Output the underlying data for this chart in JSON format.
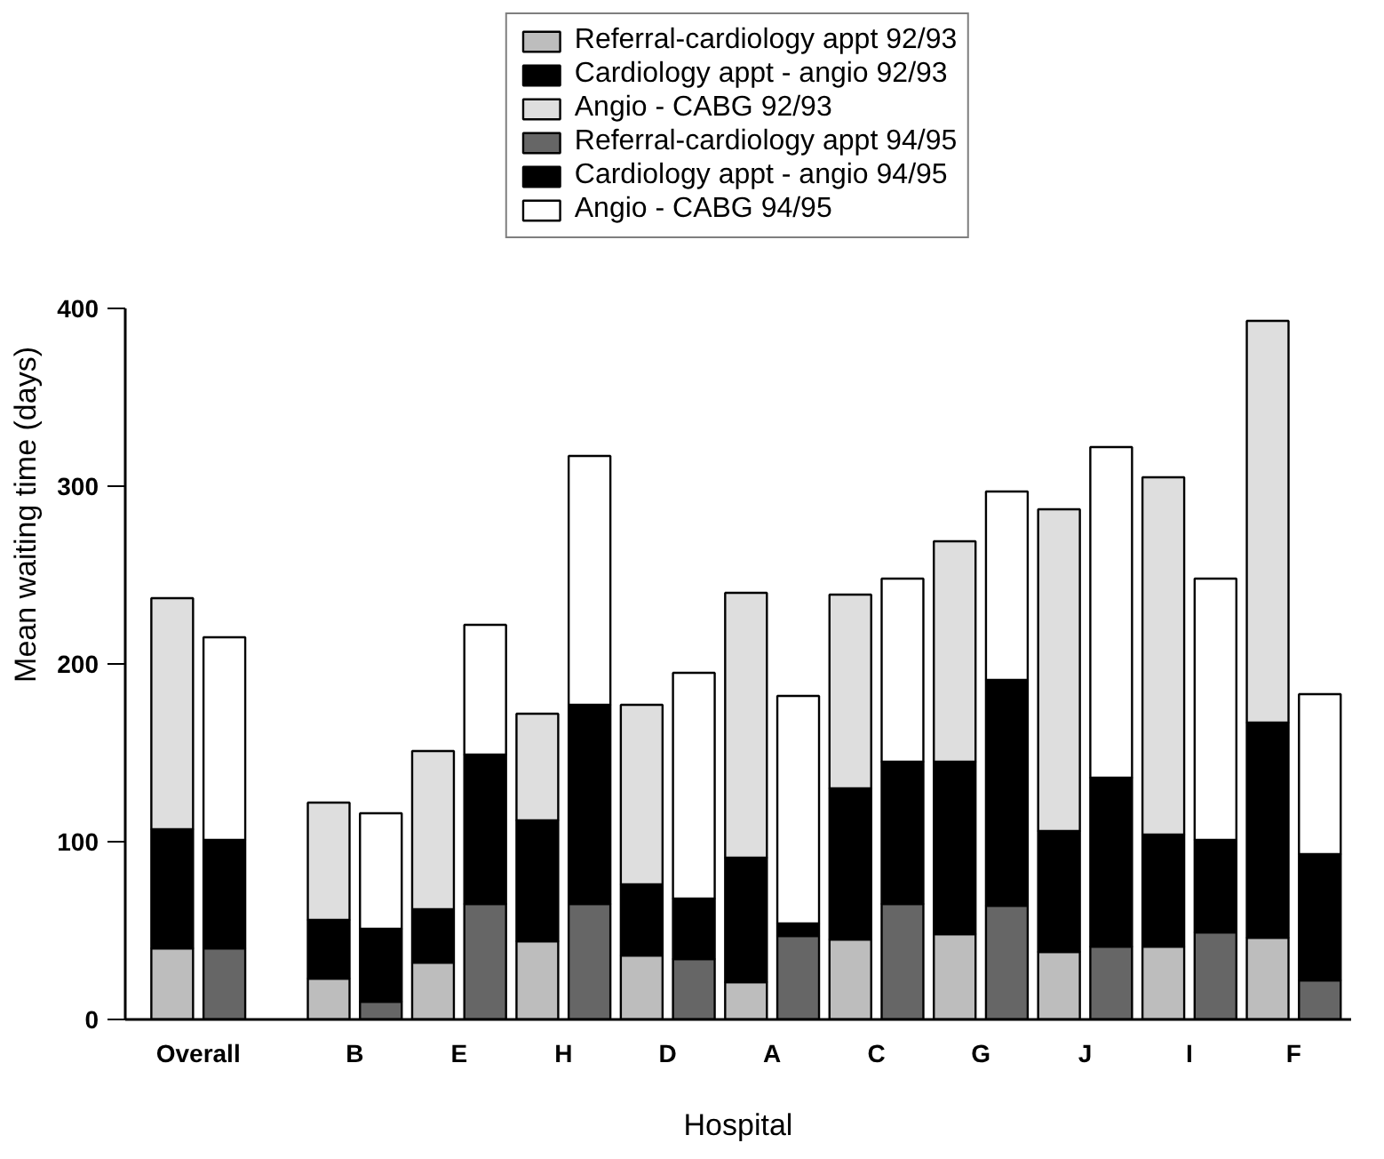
{
  "chart_data": {
    "type": "bar",
    "stacked": true,
    "xlabel": "Hospital",
    "ylabel": "Mean waiting time (days)",
    "categories": [
      "Overall",
      null,
      null,
      "B",
      null,
      "E",
      null,
      "H",
      null,
      "D",
      null,
      "A",
      null,
      "C",
      null,
      "G",
      null,
      "J",
      null,
      "I",
      null,
      "F",
      null
    ],
    "ylim": [
      0,
      400
    ],
    "yticks": [
      0,
      100,
      200,
      300,
      400
    ],
    "legend": "top",
    "series": [
      {
        "name": "Referral-cardiology appt 92/93",
        "color": "#bdbdbd",
        "values": [
          40,
          null,
          null,
          23,
          null,
          32,
          null,
          44,
          null,
          36,
          null,
          21,
          null,
          45,
          null,
          48,
          null,
          38,
          null,
          41,
          null,
          46,
          null
        ]
      },
      {
        "name": "Cardiology appt - angio 92/93",
        "color": "#000000",
        "values": [
          67,
          null,
          null,
          33,
          null,
          30,
          null,
          68,
          null,
          40,
          null,
          70,
          null,
          85,
          null,
          97,
          null,
          68,
          null,
          63,
          null,
          121,
          null
        ]
      },
      {
        "name": "Angio - CABG 92/93",
        "color": "#dedede",
        "values": [
          130,
          null,
          null,
          66,
          null,
          89,
          null,
          60,
          null,
          101,
          null,
          149,
          null,
          109,
          null,
          124,
          null,
          181,
          null,
          201,
          null,
          226,
          null
        ]
      },
      {
        "name": "Referral-cardiology appt 94/95",
        "color": "#666666",
        "values": [
          null,
          40,
          null,
          null,
          10,
          null,
          65,
          null,
          65,
          null,
          34,
          null,
          47,
          null,
          65,
          null,
          64,
          null,
          41,
          null,
          49,
          null,
          22
        ]
      },
      {
        "name": "Cardiology appt - angio 94/95",
        "color": "#000000",
        "values": [
          null,
          61,
          null,
          null,
          41,
          null,
          84,
          null,
          112,
          null,
          34,
          null,
          7,
          null,
          80,
          null,
          127,
          null,
          95,
          null,
          52,
          null,
          71
        ]
      },
      {
        "name": "Angio - CABG 94/95",
        "color": "#ffffff",
        "values": [
          null,
          114,
          null,
          null,
          65,
          null,
          73,
          null,
          140,
          null,
          127,
          null,
          128,
          null,
          103,
          null,
          106,
          null,
          186,
          null,
          147,
          null,
          90
        ]
      }
    ]
  }
}
